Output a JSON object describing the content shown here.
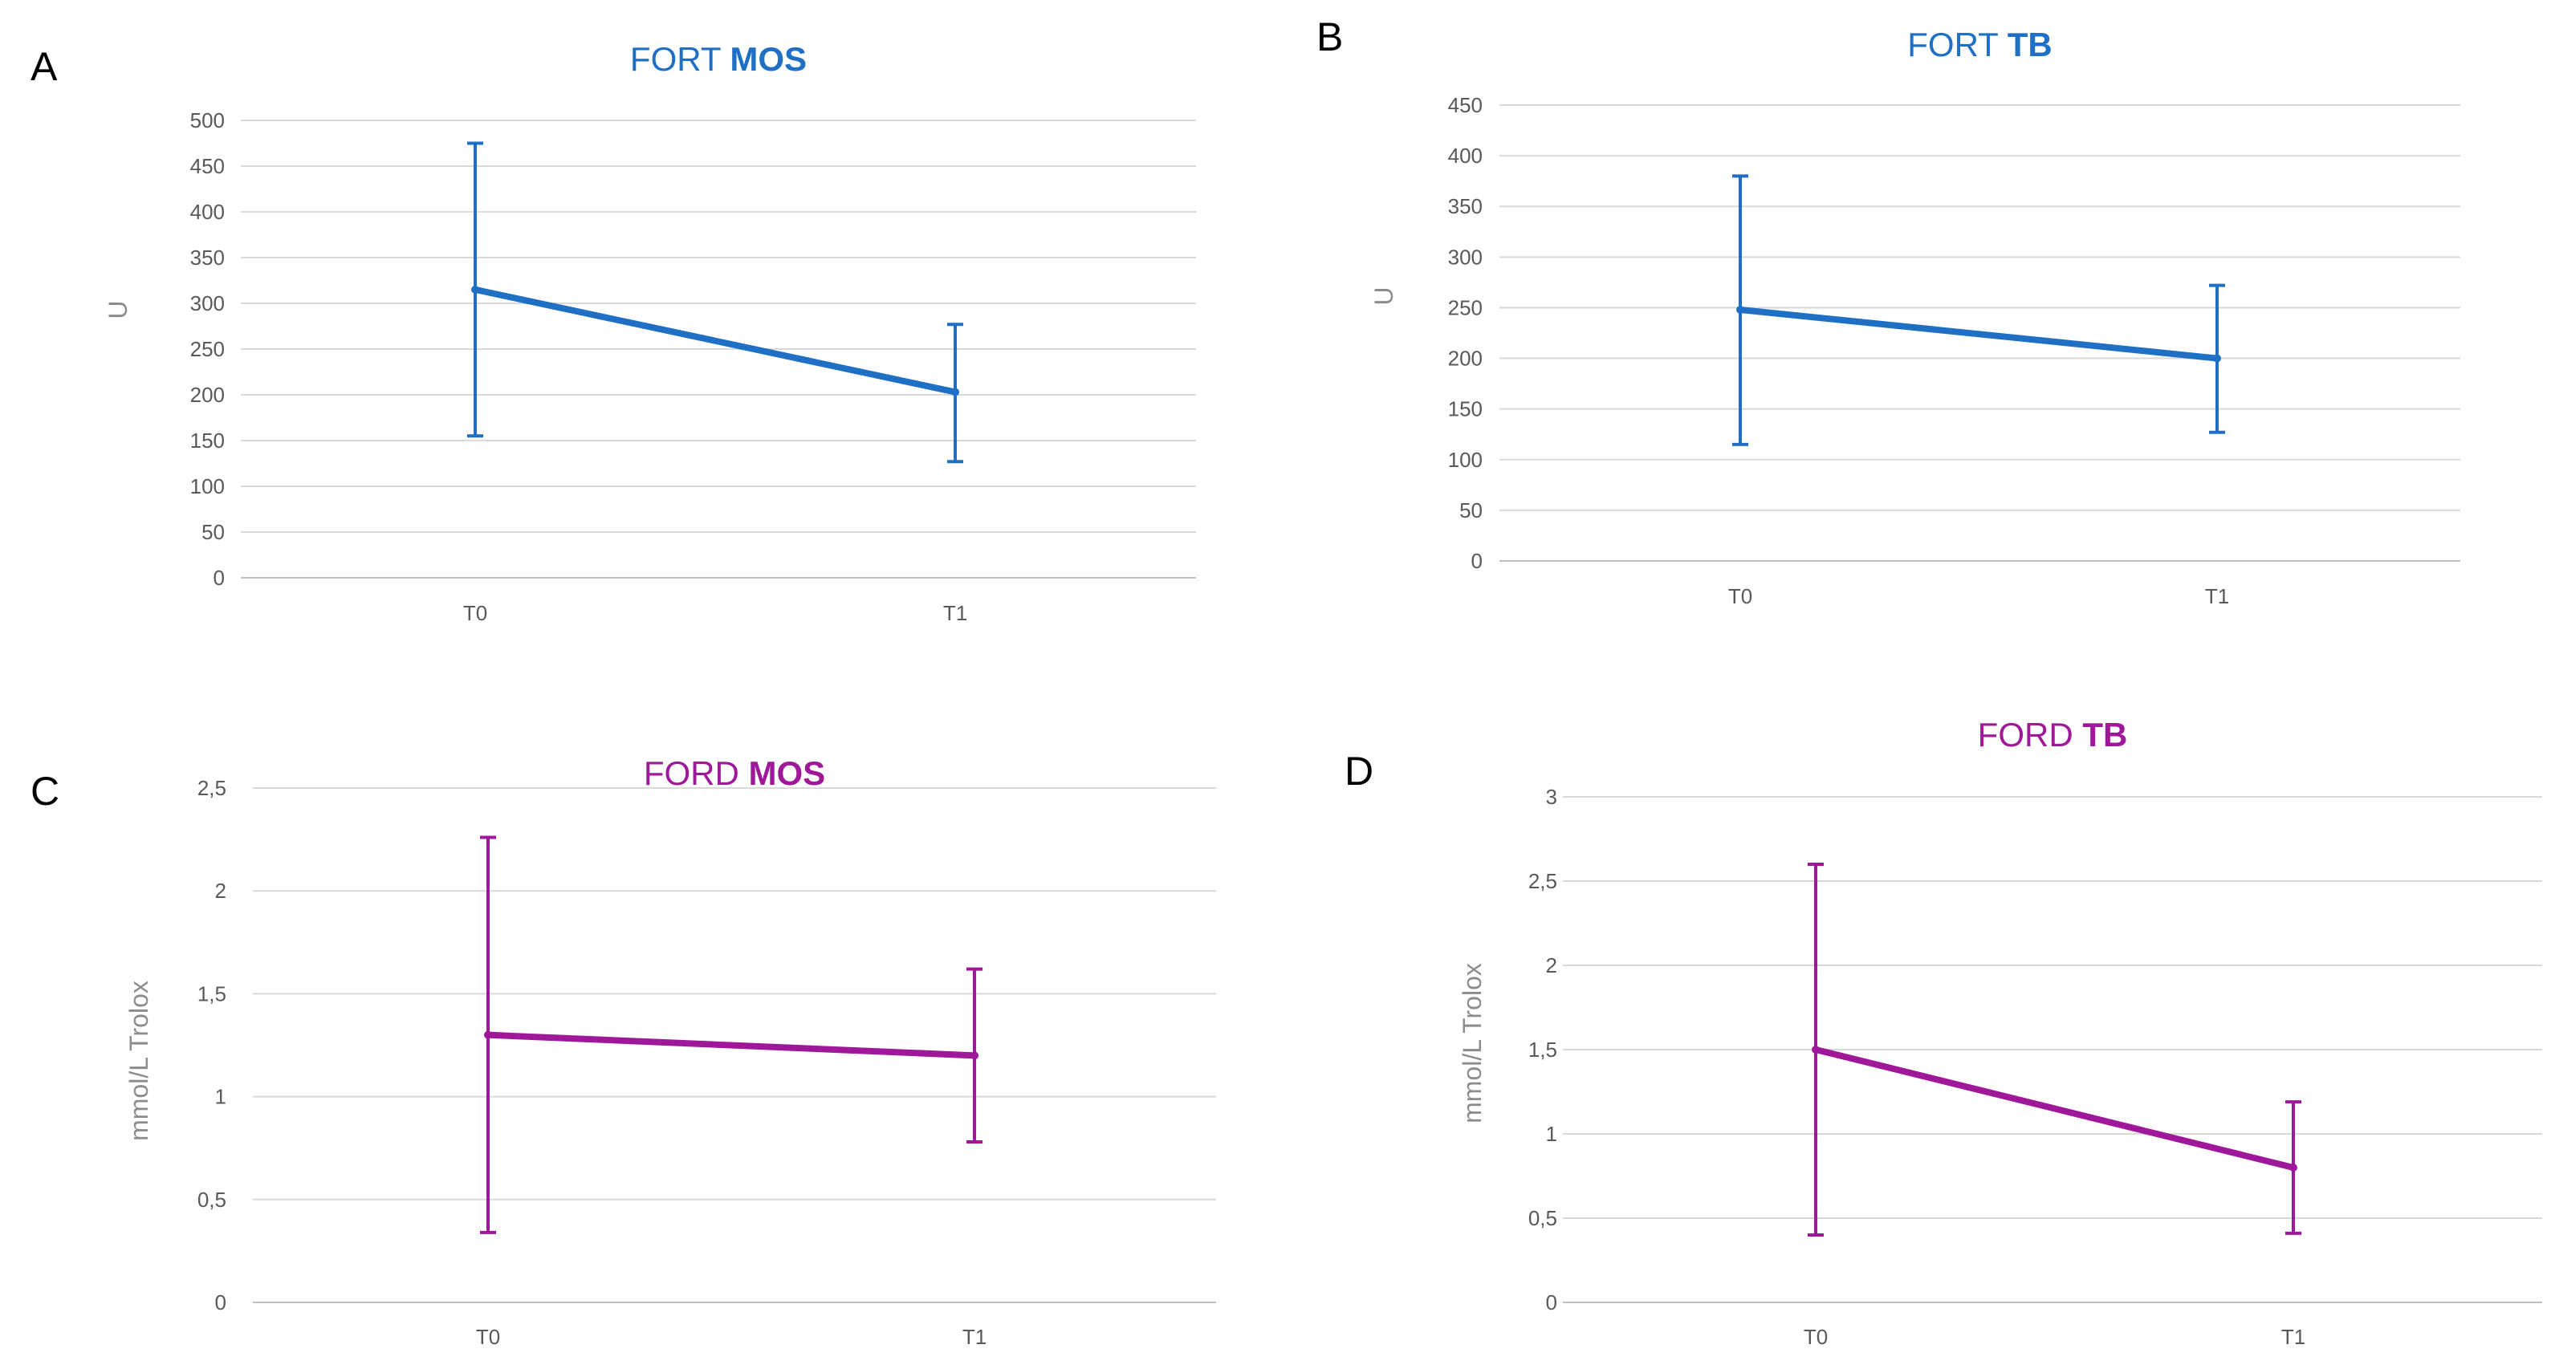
{
  "chart_data": [
    {
      "panel": "A",
      "type": "line",
      "title": "FORT MOS",
      "title_parts": [
        "FORT",
        "MOS"
      ],
      "color": "#1f6fc5",
      "categories": [
        "T0",
        "T1"
      ],
      "values": [
        315,
        203
      ],
      "error_high": [
        475,
        277
      ],
      "error_low": [
        155,
        127
      ],
      "ylabel": "U",
      "ylim": [
        0,
        500
      ],
      "yticks": [
        0,
        50,
        100,
        150,
        200,
        250,
        300,
        350,
        400,
        450,
        500
      ],
      "ytick_labels": [
        "0",
        "50",
        "100",
        "150",
        "200",
        "250",
        "300",
        "350",
        "400",
        "450",
        "500"
      ]
    },
    {
      "panel": "B",
      "type": "line",
      "title": "FORT TB",
      "title_parts": [
        "FORT",
        "TB"
      ],
      "color": "#1f6fc5",
      "categories": [
        "T0",
        "T1"
      ],
      "values": [
        248,
        200
      ],
      "error_high": [
        380,
        272
      ],
      "error_low": [
        115,
        127
      ],
      "ylabel": "U",
      "ylim": [
        0,
        450
      ],
      "yticks": [
        0,
        50,
        100,
        150,
        200,
        250,
        300,
        350,
        400,
        450
      ],
      "ytick_labels": [
        "0",
        "50",
        "100",
        "150",
        "200",
        "250",
        "300",
        "350",
        "400",
        "450"
      ]
    },
    {
      "panel": "C",
      "type": "line",
      "title": "FORD MOS",
      "title_parts": [
        "FORD",
        "MOS"
      ],
      "color": "#a0189a",
      "categories": [
        "T0",
        "T1"
      ],
      "values": [
        1.3,
        1.2
      ],
      "error_high": [
        2.26,
        1.62
      ],
      "error_low": [
        0.34,
        0.78
      ],
      "ylabel": "mmol/L Trolox",
      "ylim": [
        0,
        2.5
      ],
      "yticks": [
        0,
        0.5,
        1,
        1.5,
        2,
        2.5
      ],
      "ytick_labels": [
        "0",
        "0,5",
        "1",
        "1,5",
        "2",
        "2,5"
      ]
    },
    {
      "panel": "D",
      "type": "line",
      "title": "FORD TB",
      "title_parts": [
        "FORD",
        "TB"
      ],
      "color": "#a0189a",
      "categories": [
        "T0",
        "T1"
      ],
      "values": [
        1.5,
        0.8
      ],
      "error_high": [
        2.6,
        1.19
      ],
      "error_low": [
        0.4,
        0.41
      ],
      "ylabel": "mmol/L Trolox",
      "ylim": [
        0,
        3
      ],
      "yticks": [
        0,
        0.5,
        1,
        1.5,
        2,
        2.5,
        3
      ],
      "ytick_labels": [
        "0",
        "0,5",
        "1",
        "1,5",
        "2",
        "2,5",
        "3"
      ]
    }
  ]
}
